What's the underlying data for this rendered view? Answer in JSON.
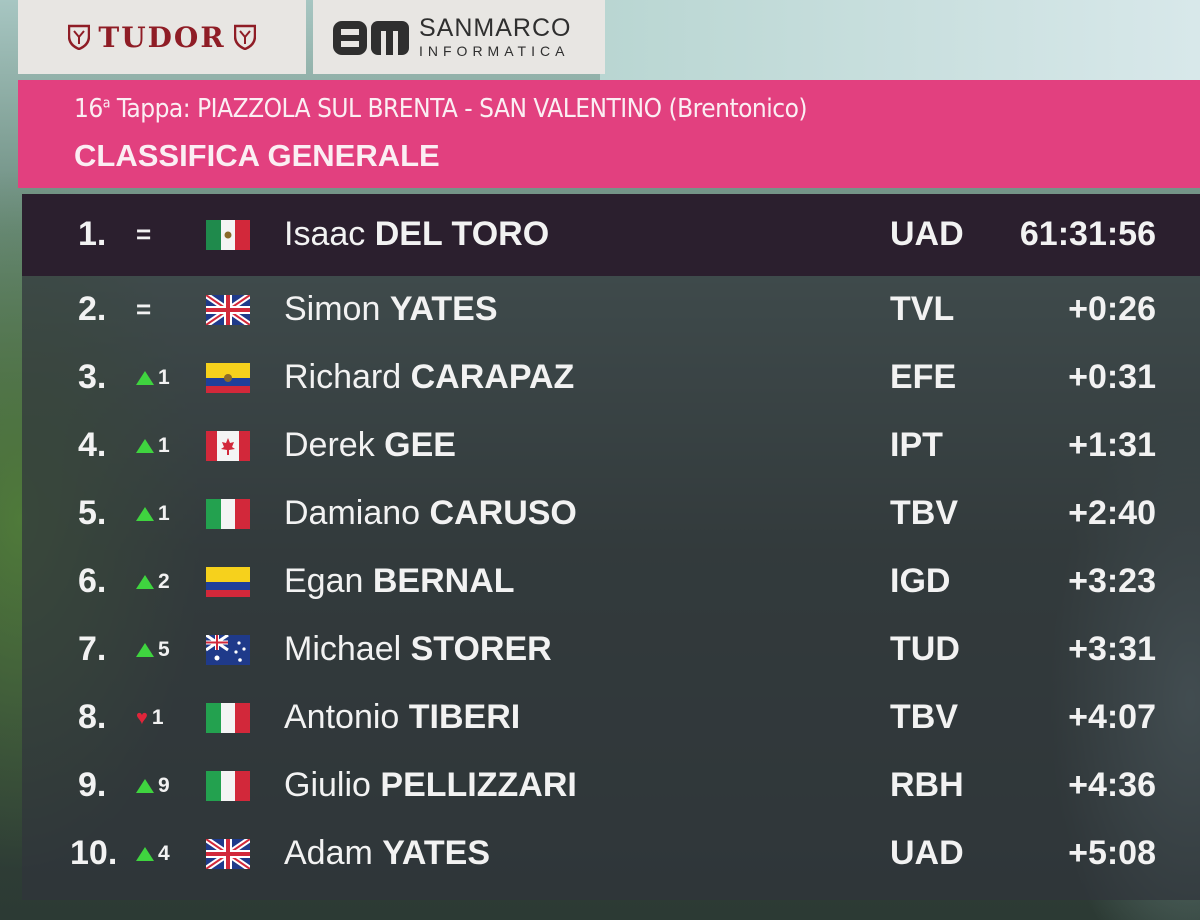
{
  "sponsors": {
    "left": "TUDOR",
    "right_name": "SANMARCO",
    "right_sub": "INFORMATICA"
  },
  "header": {
    "stage_number": "16",
    "stage_suffix": "a",
    "stage_label": " Tappa: ",
    "stage_route": "PIAZZOLA SUL BRENTA - SAN VALENTINO (Brentonico)",
    "title": "CLASSIFICA GENERALE"
  },
  "colors": {
    "header_pink": "#e2407f",
    "up_green": "#3fd43f",
    "down_red": "#e0253a"
  },
  "standings": [
    {
      "pos": "1.",
      "move_type": "same",
      "move": "=",
      "flag": "mexico",
      "first": "Isaac",
      "last": "DEL TORO",
      "team": "UAD",
      "time": "61:31:56"
    },
    {
      "pos": "2.",
      "move_type": "same",
      "move": "=",
      "flag": "uk",
      "first": "Simon",
      "last": "YATES",
      "team": "TVL",
      "time": "+0:26"
    },
    {
      "pos": "3.",
      "move_type": "up",
      "move": "1",
      "flag": "ecuador",
      "first": "Richard",
      "last": "CARAPAZ",
      "team": "EFE",
      "time": "+0:31"
    },
    {
      "pos": "4.",
      "move_type": "up",
      "move": "1",
      "flag": "canada",
      "first": "Derek",
      "last": "GEE",
      "team": "IPT",
      "time": "+1:31"
    },
    {
      "pos": "5.",
      "move_type": "up",
      "move": "1",
      "flag": "italy",
      "first": "Damiano",
      "last": "CARUSO",
      "team": "TBV",
      "time": "+2:40"
    },
    {
      "pos": "6.",
      "move_type": "up",
      "move": "2",
      "flag": "colombia",
      "first": "Egan",
      "last": "BERNAL",
      "team": "IGD",
      "time": "+3:23"
    },
    {
      "pos": "7.",
      "move_type": "up",
      "move": "5",
      "flag": "australia",
      "first": "Michael",
      "last": "STORER",
      "team": "TUD",
      "time": "+3:31"
    },
    {
      "pos": "8.",
      "move_type": "down",
      "move": "1",
      "flag": "italy",
      "first": "Antonio",
      "last": "TIBERI",
      "team": "TBV",
      "time": "+4:07"
    },
    {
      "pos": "9.",
      "move_type": "up",
      "move": "9",
      "flag": "italy",
      "first": "Giulio",
      "last": "PELLIZZARI",
      "team": "RBH",
      "time": "+4:36"
    },
    {
      "pos": "10.",
      "move_type": "up",
      "move": "4",
      "flag": "uk",
      "first": "Adam",
      "last": "YATES",
      "team": "UAD",
      "time": "+5:08"
    }
  ]
}
